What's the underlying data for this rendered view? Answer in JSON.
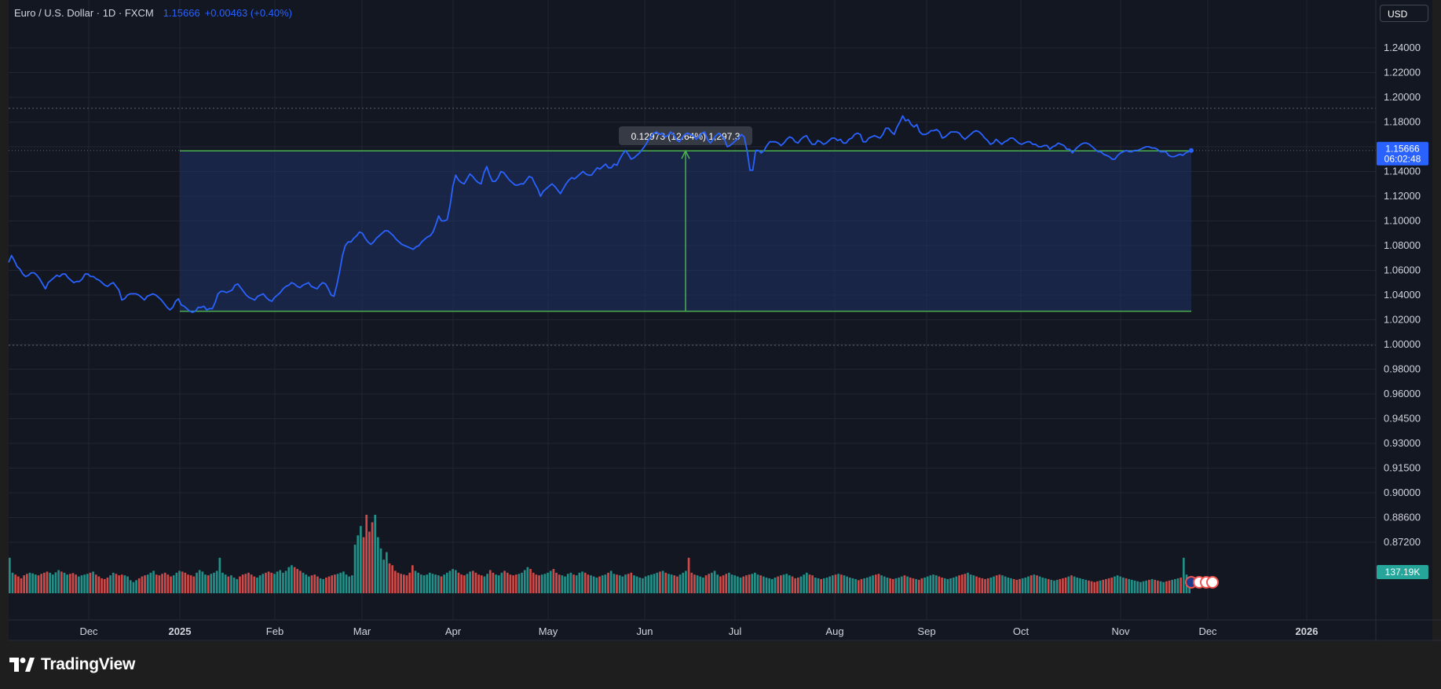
{
  "header": {
    "title": "Euro / U.S. Dollar · 1D · FXCM",
    "price": "1.15666",
    "change": "+0.00463 (+0.40%)"
  },
  "currency_button": "USD",
  "brand": "TradingView",
  "colors": {
    "background": "#131722",
    "outer": "#1e1e1e",
    "line": "#2962ff",
    "range_fill": "#1f3264",
    "range_border": "#4caf50",
    "volume_up": "#26a69a",
    "volume_down": "#ef5350",
    "grid": "#232632",
    "axis_text": "#d1d4dc"
  },
  "price_label": {
    "value": "1.15666",
    "countdown": "06:02:48"
  },
  "volume_label": "137.19K",
  "measure_tooltip": "0.12973 (12.64%) 1,297.3",
  "chart_data": {
    "type": "line",
    "y_tick_labels": [
      "1.24000",
      "1.22000",
      "1.20000",
      "1.18000",
      "1.16000",
      "1.14000",
      "1.12000",
      "1.10000",
      "1.08000",
      "1.06000",
      "1.04000",
      "1.02000",
      "1.00000",
      "0.98000",
      "0.96000",
      "0.94500",
      "0.93000",
      "0.91500",
      "0.90000",
      "0.88600",
      "0.87200"
    ],
    "x_tick_labels": [
      "Dec",
      "2025",
      "Feb",
      "Mar",
      "Apr",
      "May",
      "Jun",
      "Jul",
      "Aug",
      "Sep",
      "Oct",
      "Nov",
      "Dec",
      "2026"
    ],
    "x_tick_fraction": [
      0.0,
      0.1,
      0.2,
      0.3,
      0.4,
      0.5,
      0.6,
      0.7,
      0.8,
      0.9,
      1.0
    ],
    "series": [
      {
        "name": "EURUSD",
        "x_start": "2024-11-13",
        "x_end": "2025-11-24",
        "values": [
          1.0665,
          1.072,
          1.068,
          1.063,
          1.061,
          1.057,
          1.055,
          1.056,
          1.058,
          1.058,
          1.056,
          1.053,
          1.049,
          1.045,
          1.05,
          1.052,
          1.054,
          1.056,
          1.055,
          1.057,
          1.057,
          1.054,
          1.052,
          1.05,
          1.051,
          1.051,
          1.053,
          1.057,
          1.057,
          1.055,
          1.055,
          1.053,
          1.052,
          1.05,
          1.048,
          1.047,
          1.049,
          1.05,
          1.047,
          1.044,
          1.036,
          1.037,
          1.04,
          1.041,
          1.041,
          1.041,
          1.04,
          1.038,
          1.036,
          1.039,
          1.04,
          1.041,
          1.04,
          1.038,
          1.036,
          1.033,
          1.03,
          1.028,
          1.03,
          1.035,
          1.037,
          1.032,
          1.031,
          1.029,
          1.027,
          1.026,
          1.027,
          1.03,
          1.03,
          1.031,
          1.028,
          1.029,
          1.029,
          1.034,
          1.041,
          1.043,
          1.043,
          1.042,
          1.043,
          1.044,
          1.048,
          1.049,
          1.046,
          1.043,
          1.04,
          1.038,
          1.037,
          1.036,
          1.039,
          1.04,
          1.041,
          1.038,
          1.036,
          1.035,
          1.038,
          1.04,
          1.042,
          1.045,
          1.047,
          1.048,
          1.05,
          1.049,
          1.047,
          1.046,
          1.048,
          1.049,
          1.05,
          1.047,
          1.046,
          1.045,
          1.048,
          1.05,
          1.049,
          1.045,
          1.04,
          1.039,
          1.048,
          1.059,
          1.072,
          1.08,
          1.083,
          1.083,
          1.086,
          1.088,
          1.091,
          1.09,
          1.086,
          1.083,
          1.081,
          1.083,
          1.086,
          1.088,
          1.09,
          1.092,
          1.092,
          1.09,
          1.088,
          1.085,
          1.083,
          1.081,
          1.08,
          1.079,
          1.078,
          1.077,
          1.079,
          1.08,
          1.083,
          1.085,
          1.087,
          1.088,
          1.091,
          1.097,
          1.104,
          1.1,
          1.1,
          1.101,
          1.112,
          1.128,
          1.137,
          1.133,
          1.131,
          1.13,
          1.134,
          1.138,
          1.136,
          1.133,
          1.131,
          1.13,
          1.139,
          1.144,
          1.137,
          1.132,
          1.132,
          1.135,
          1.14,
          1.139,
          1.136,
          1.133,
          1.131,
          1.129,
          1.129,
          1.13,
          1.13,
          1.133,
          1.136,
          1.135,
          1.13,
          1.126,
          1.12,
          1.124,
          1.126,
          1.128,
          1.13,
          1.128,
          1.125,
          1.122,
          1.126,
          1.13,
          1.133,
          1.135,
          1.134,
          1.136,
          1.138,
          1.14,
          1.138,
          1.137,
          1.137,
          1.14,
          1.143,
          1.142,
          1.144,
          1.146,
          1.143,
          1.143,
          1.146,
          1.145,
          1.15,
          1.154,
          1.157,
          1.154,
          1.15,
          1.151,
          1.153,
          1.155,
          1.158,
          1.161,
          1.165,
          1.168,
          1.171,
          1.172,
          1.17,
          1.171,
          1.168,
          1.169,
          1.172,
          1.17,
          1.166,
          1.164,
          1.167,
          1.17,
          1.171,
          1.17,
          1.169,
          1.166,
          1.168,
          1.171,
          1.172,
          1.166,
          1.163,
          1.166,
          1.169,
          1.171,
          1.169,
          1.166,
          1.16,
          1.161,
          1.163,
          1.165,
          1.167,
          1.17,
          1.168,
          1.157,
          1.141,
          1.141,
          1.157,
          1.157,
          1.155,
          1.157,
          1.161,
          1.164,
          1.164,
          1.164,
          1.163,
          1.161,
          1.163,
          1.166,
          1.168,
          1.167,
          1.164,
          1.163,
          1.166,
          1.168,
          1.169,
          1.165,
          1.162,
          1.162,
          1.165,
          1.164,
          1.162,
          1.163,
          1.165,
          1.167,
          1.167,
          1.165,
          1.166,
          1.163,
          1.163,
          1.166,
          1.167,
          1.17,
          1.171,
          1.17,
          1.164,
          1.164,
          1.167,
          1.168,
          1.169,
          1.168,
          1.167,
          1.17,
          1.175,
          1.175,
          1.172,
          1.17,
          1.176,
          1.18,
          1.185,
          1.181,
          1.182,
          1.178,
          1.176,
          1.178,
          1.172,
          1.17,
          1.17,
          1.171,
          1.173,
          1.173,
          1.174,
          1.172,
          1.167,
          1.168,
          1.17,
          1.172,
          1.172,
          1.172,
          1.171,
          1.168,
          1.166,
          1.168,
          1.17,
          1.172,
          1.173,
          1.172,
          1.17,
          1.167,
          1.165,
          1.162,
          1.163,
          1.166,
          1.164,
          1.162,
          1.164,
          1.165,
          1.167,
          1.167,
          1.165,
          1.163,
          1.162,
          1.163,
          1.164,
          1.164,
          1.162,
          1.162,
          1.16,
          1.16,
          1.161,
          1.161,
          1.158,
          1.16,
          1.161,
          1.163,
          1.162,
          1.161,
          1.158,
          1.158,
          1.155,
          1.158,
          1.16,
          1.162,
          1.163,
          1.163,
          1.162,
          1.16,
          1.158,
          1.156,
          1.156,
          1.154,
          1.153,
          1.152,
          1.15,
          1.15,
          1.153,
          1.155,
          1.156,
          1.157,
          1.156,
          1.156,
          1.157,
          1.157,
          1.158,
          1.159,
          1.16,
          1.16,
          1.159,
          1.159,
          1.158,
          1.156,
          1.156,
          1.156,
          1.153,
          1.152,
          1.152,
          1.153,
          1.154,
          1.153,
          1.155,
          1.156,
          1.157
        ]
      }
    ],
    "volume": {
      "values": [
        0.95,
        0.55,
        0.5,
        0.45,
        0.4,
        0.48,
        0.52,
        0.55,
        0.53,
        0.5,
        0.48,
        0.52,
        0.55,
        0.58,
        0.55,
        0.5,
        0.56,
        0.62,
        0.58,
        0.55,
        0.5,
        0.52,
        0.54,
        0.5,
        0.45,
        0.48,
        0.5,
        0.52,
        0.55,
        0.58,
        0.5,
        0.45,
        0.4,
        0.38,
        0.42,
        0.48,
        0.55,
        0.52,
        0.48,
        0.5,
        0.48,
        0.45,
        0.35,
        0.3,
        0.35,
        0.4,
        0.45,
        0.48,
        0.5,
        0.55,
        0.6,
        0.5,
        0.48,
        0.52,
        0.55,
        0.5,
        0.45,
        0.48,
        0.55,
        0.6,
        0.58,
        0.55,
        0.5,
        0.48,
        0.45,
        0.55,
        0.62,
        0.58,
        0.5,
        0.48,
        0.52,
        0.55,
        0.6,
        0.95,
        0.55,
        0.5,
        0.45,
        0.48,
        0.42,
        0.38,
        0.45,
        0.5,
        0.52,
        0.55,
        0.5,
        0.45,
        0.42,
        0.48,
        0.52,
        0.55,
        0.58,
        0.55,
        0.52,
        0.58,
        0.62,
        0.55,
        0.6,
        0.7,
        0.75,
        0.7,
        0.65,
        0.6,
        0.55,
        0.5,
        0.45,
        0.48,
        0.5,
        0.45,
        0.4,
        0.38,
        0.42,
        0.45,
        0.48,
        0.5,
        0.52,
        0.55,
        0.58,
        0.5,
        0.45,
        0.48,
        1.3,
        1.55,
        1.8,
        1.5,
        2.1,
        1.65,
        1.9,
        2.1,
        1.5,
        1.2,
        0.9,
        1.1,
        0.8,
        0.75,
        0.6,
        0.55,
        0.52,
        0.5,
        0.48,
        0.55,
        0.75,
        0.6,
        0.55,
        0.5,
        0.48,
        0.5,
        0.55,
        0.52,
        0.5,
        0.48,
        0.45,
        0.5,
        0.55,
        0.6,
        0.65,
        0.62,
        0.55,
        0.5,
        0.48,
        0.52,
        0.58,
        0.6,
        0.55,
        0.5,
        0.48,
        0.45,
        0.52,
        0.62,
        0.55,
        0.5,
        0.48,
        0.55,
        0.6,
        0.55,
        0.5,
        0.48,
        0.5,
        0.52,
        0.55,
        0.62,
        0.7,
        0.65,
        0.55,
        0.5,
        0.48,
        0.5,
        0.52,
        0.55,
        0.6,
        0.65,
        0.55,
        0.5,
        0.48,
        0.45,
        0.52,
        0.55,
        0.5,
        0.48,
        0.55,
        0.58,
        0.55,
        0.5,
        0.48,
        0.45,
        0.42,
        0.45,
        0.48,
        0.5,
        0.55,
        0.6,
        0.52,
        0.5,
        0.48,
        0.45,
        0.5,
        0.52,
        0.55,
        0.48,
        0.45,
        0.42,
        0.4,
        0.45,
        0.48,
        0.5,
        0.52,
        0.55,
        0.58,
        0.6,
        0.55,
        0.52,
        0.5,
        0.48,
        0.45,
        0.5,
        0.55,
        0.6,
        0.95,
        0.55,
        0.5,
        0.48,
        0.45,
        0.42,
        0.48,
        0.52,
        0.55,
        0.6,
        0.5,
        0.45,
        0.48,
        0.52,
        0.55,
        0.5,
        0.48,
        0.45,
        0.42,
        0.45,
        0.48,
        0.5,
        0.52,
        0.55,
        0.5,
        0.48,
        0.45,
        0.42,
        0.4,
        0.38,
        0.42,
        0.45,
        0.48,
        0.5,
        0.52,
        0.48,
        0.45,
        0.4,
        0.42,
        0.45,
        0.5,
        0.55,
        0.5,
        0.48,
        0.42,
        0.4,
        0.38,
        0.4,
        0.42,
        0.45,
        0.48,
        0.5,
        0.52,
        0.5,
        0.48,
        0.45,
        0.42,
        0.4,
        0.38,
        0.35,
        0.38,
        0.4,
        0.42,
        0.45,
        0.48,
        0.5,
        0.52,
        0.48,
        0.45,
        0.42,
        0.4,
        0.38,
        0.4,
        0.42,
        0.45,
        0.48,
        0.45,
        0.42,
        0.4,
        0.38,
        0.36,
        0.4,
        0.42,
        0.45,
        0.48,
        0.5,
        0.48,
        0.45,
        0.42,
        0.4,
        0.38,
        0.4,
        0.42,
        0.45,
        0.48,
        0.5,
        0.52,
        0.55,
        0.5,
        0.48,
        0.45,
        0.42,
        0.4,
        0.38,
        0.4,
        0.42,
        0.45,
        0.48,
        0.5,
        0.48,
        0.45,
        0.42,
        0.4,
        0.38,
        0.36,
        0.38,
        0.4,
        0.42,
        0.45,
        0.48,
        0.5,
        0.48,
        0.45,
        0.42,
        0.4,
        0.38,
        0.36,
        0.34,
        0.36,
        0.38,
        0.4,
        0.42,
        0.45,
        0.48,
        0.45,
        0.42,
        0.4,
        0.38,
        0.36,
        0.34,
        0.32,
        0.3,
        0.32,
        0.34,
        0.36,
        0.38,
        0.4,
        0.42,
        0.45,
        0.48,
        0.45,
        0.42,
        0.4,
        0.38,
        0.36,
        0.34,
        0.32,
        0.3,
        0.32,
        0.34,
        0.36,
        0.38,
        0.36,
        0.34,
        0.32,
        0.3,
        0.32,
        0.34,
        0.36,
        0.38,
        0.4,
        0.42,
        0.95,
        0.5,
        0.38
      ]
    },
    "range": {
      "y_high": 1.15666,
      "y_low": 1.02693
    }
  }
}
